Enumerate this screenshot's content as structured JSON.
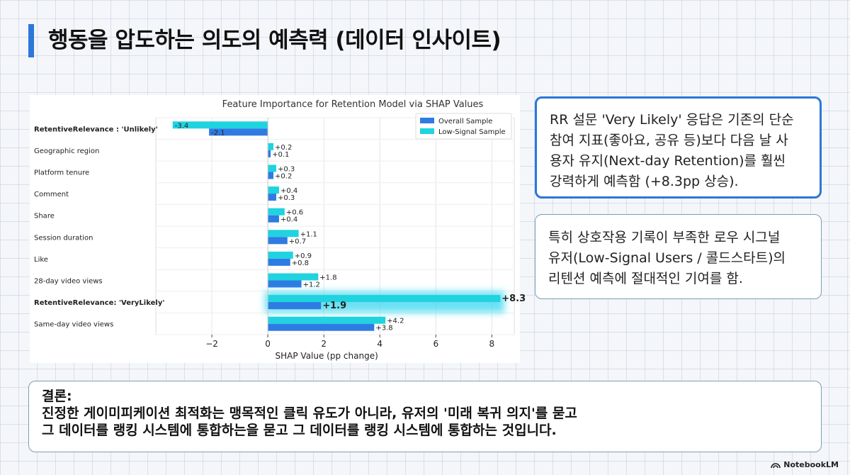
{
  "page": {
    "title": "행동을 압도하는 의도의 예측력 (데이터 인사이트)",
    "accent_color": "#2b78d8"
  },
  "insight_cards": [
    {
      "text": "RR 설문 'Very Likely' 응답은 기존의 단순\n참여 지표(좋아요, 공유 등)보다 다음 날 사\n용자 유지(Next-day Retention)를 훨씬\n강력하게 예측함 (+8.3pp 상승)."
    },
    {
      "text": "특히 상호작용 기록이 부족한 로우 시그널\n유저(Low-Signal Users / 콜드스타트)의\n리텐션 예측에 절대적인 기여를 함."
    }
  ],
  "conclusion": {
    "label": "결론:",
    "text": "진정한 게이미피케이션 최적화는 맹목적인 클릭 유도가 아니라, 유저의 '미래 복귀 의지'를 묻고\n그 데이터를 랭킹 시스템에 통합하는을 묻고 그 데이터를 랭킹 시스템에 통합하는 것입니다."
  },
  "brand": {
    "name": "NotebookLM",
    "icon": "notebooklm-logo-icon"
  },
  "chart_data": {
    "type": "bar",
    "orientation": "horizontal",
    "title": "Feature Importance for Retention Model via SHAP Values",
    "xlabel": "SHAP Value (pp change)",
    "ylabel": "",
    "xlim": [
      -4,
      8.8
    ],
    "xticks": [
      -2,
      0,
      2,
      4,
      6,
      8
    ],
    "xtick_labels": [
      "−2",
      "0",
      "2",
      "4",
      "6",
      "8"
    ],
    "grid": true,
    "legend_position": "top-right",
    "categories": [
      "RetentiveRelevance : 'Unlikely'",
      "Geographic region",
      "Platform tenure",
      "Comment",
      "Share",
      "Session duration",
      "Like",
      "28-day video views",
      "RetentiveRelevance: 'VeryLikely'",
      "Same-day video views"
    ],
    "bold_categories": [
      "RetentiveRelevance : 'Unlikely'",
      "RetentiveRelevance: 'VeryLikely'"
    ],
    "highlight_category": "RetentiveRelevance: 'VeryLikely'",
    "series": [
      {
        "name": "Overall Sample",
        "color": "#2e7be3",
        "values": [
          -2.1,
          0.1,
          0.2,
          0.3,
          0.4,
          0.7,
          0.8,
          1.2,
          1.9,
          3.8
        ],
        "labels": [
          "-2.1",
          "+0.1",
          "+0.2",
          "+0.3",
          "+0.4",
          "+0.7",
          "+0.8",
          "+1.2",
          "+1.9",
          "+3.8"
        ]
      },
      {
        "name": "Low-Signal Sample",
        "color": "#1fd3df",
        "values": [
          -3.4,
          0.2,
          0.3,
          0.4,
          0.6,
          1.1,
          0.9,
          1.8,
          8.3,
          4.2
        ],
        "labels": [
          "-3.4",
          "+0.2",
          "+0.3",
          "+0.4",
          "+0.6",
          "+1.1",
          "+0.9",
          "+1.8",
          "+8.3",
          "+4.2"
        ]
      }
    ]
  }
}
